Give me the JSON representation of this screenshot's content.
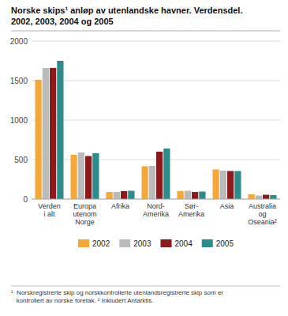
{
  "chart_data": {
    "type": "bar",
    "title": "Norske skips¹ anløp av utenlandske havner. Verdensdel.",
    "subtitle": "2002, 2003, 2004 og 2005",
    "categories": [
      "Verden\ni alt",
      "Europa\nutenom\nNorge",
      "Afrika",
      "Nord-\nAmerika",
      "Sør-\nAmerika",
      "Asia",
      "Australia\nog\nOseania²"
    ],
    "series": [
      {
        "name": "2002",
        "color": "#F5A83A",
        "values": [
          1510,
          560,
          90,
          415,
          100,
          375,
          60
        ]
      },
      {
        "name": "2003",
        "color": "#BBBBBB",
        "values": [
          1660,
          590,
          90,
          420,
          105,
          360,
          45
        ]
      },
      {
        "name": "2004",
        "color": "#8B1A1A",
        "values": [
          1660,
          545,
          100,
          600,
          90,
          355,
          55
        ]
      },
      {
        "name": "2005",
        "color": "#2E8B8B",
        "values": [
          1750,
          580,
          105,
          640,
          95,
          355,
          50
        ]
      }
    ],
    "ylim": [
      0,
      2000
    ],
    "yticks": [
      0,
      500,
      1000,
      1500,
      2000
    ],
    "grid": true,
    "legend": "bottom",
    "annotations": [
      "¹  Norskregistrerte skip og norskkontrollerte utenlandsregistrerte skip som er\n   kontrollert av norske foretak. ² Inkludert Antarktis."
    ]
  }
}
